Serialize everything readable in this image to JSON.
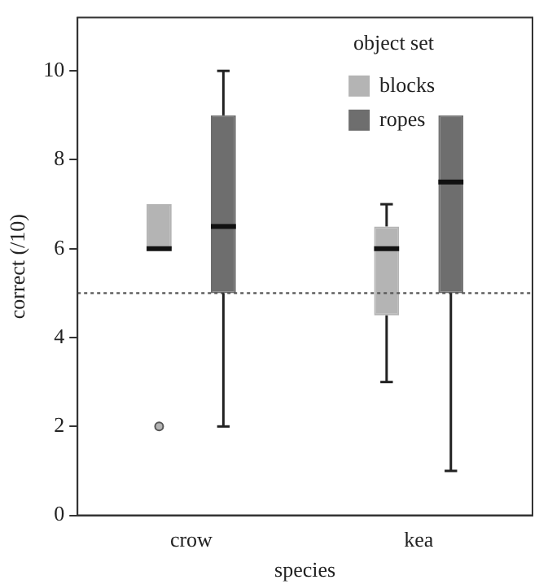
{
  "chart_data": {
    "type": "box",
    "xlabel": "species",
    "ylabel": "correct (/10)",
    "legend_title": "object set",
    "legend": "top right",
    "grid": false,
    "categories": [
      "crow",
      "kea"
    ],
    "ylim": [
      0,
      11.2
    ],
    "yticks": [
      0,
      2,
      4,
      6,
      8,
      10
    ],
    "series": [
      {
        "name": "blocks",
        "color": "#b4b4b4",
        "boxes": [
          {
            "low": 6,
            "q1": 6,
            "median": 6,
            "q3": 7,
            "high": 7,
            "outliers": [
              2
            ]
          },
          {
            "low": 3,
            "q1": 4.5,
            "median": 6,
            "q3": 6.5,
            "high": 7
          }
        ]
      },
      {
        "name": "ropes",
        "color": "#6e6e6e",
        "boxes": [
          {
            "low": 2,
            "q1": 5,
            "median": 6.5,
            "q3": 9,
            "high": 10
          },
          {
            "low": 1,
            "q1": 5,
            "median": 7.5,
            "q3": 9,
            "high": 9
          }
        ]
      }
    ],
    "ref_lines": [
      {
        "axis": "y",
        "value": 5,
        "line_style": "dotted",
        "color": "#555555"
      }
    ]
  }
}
